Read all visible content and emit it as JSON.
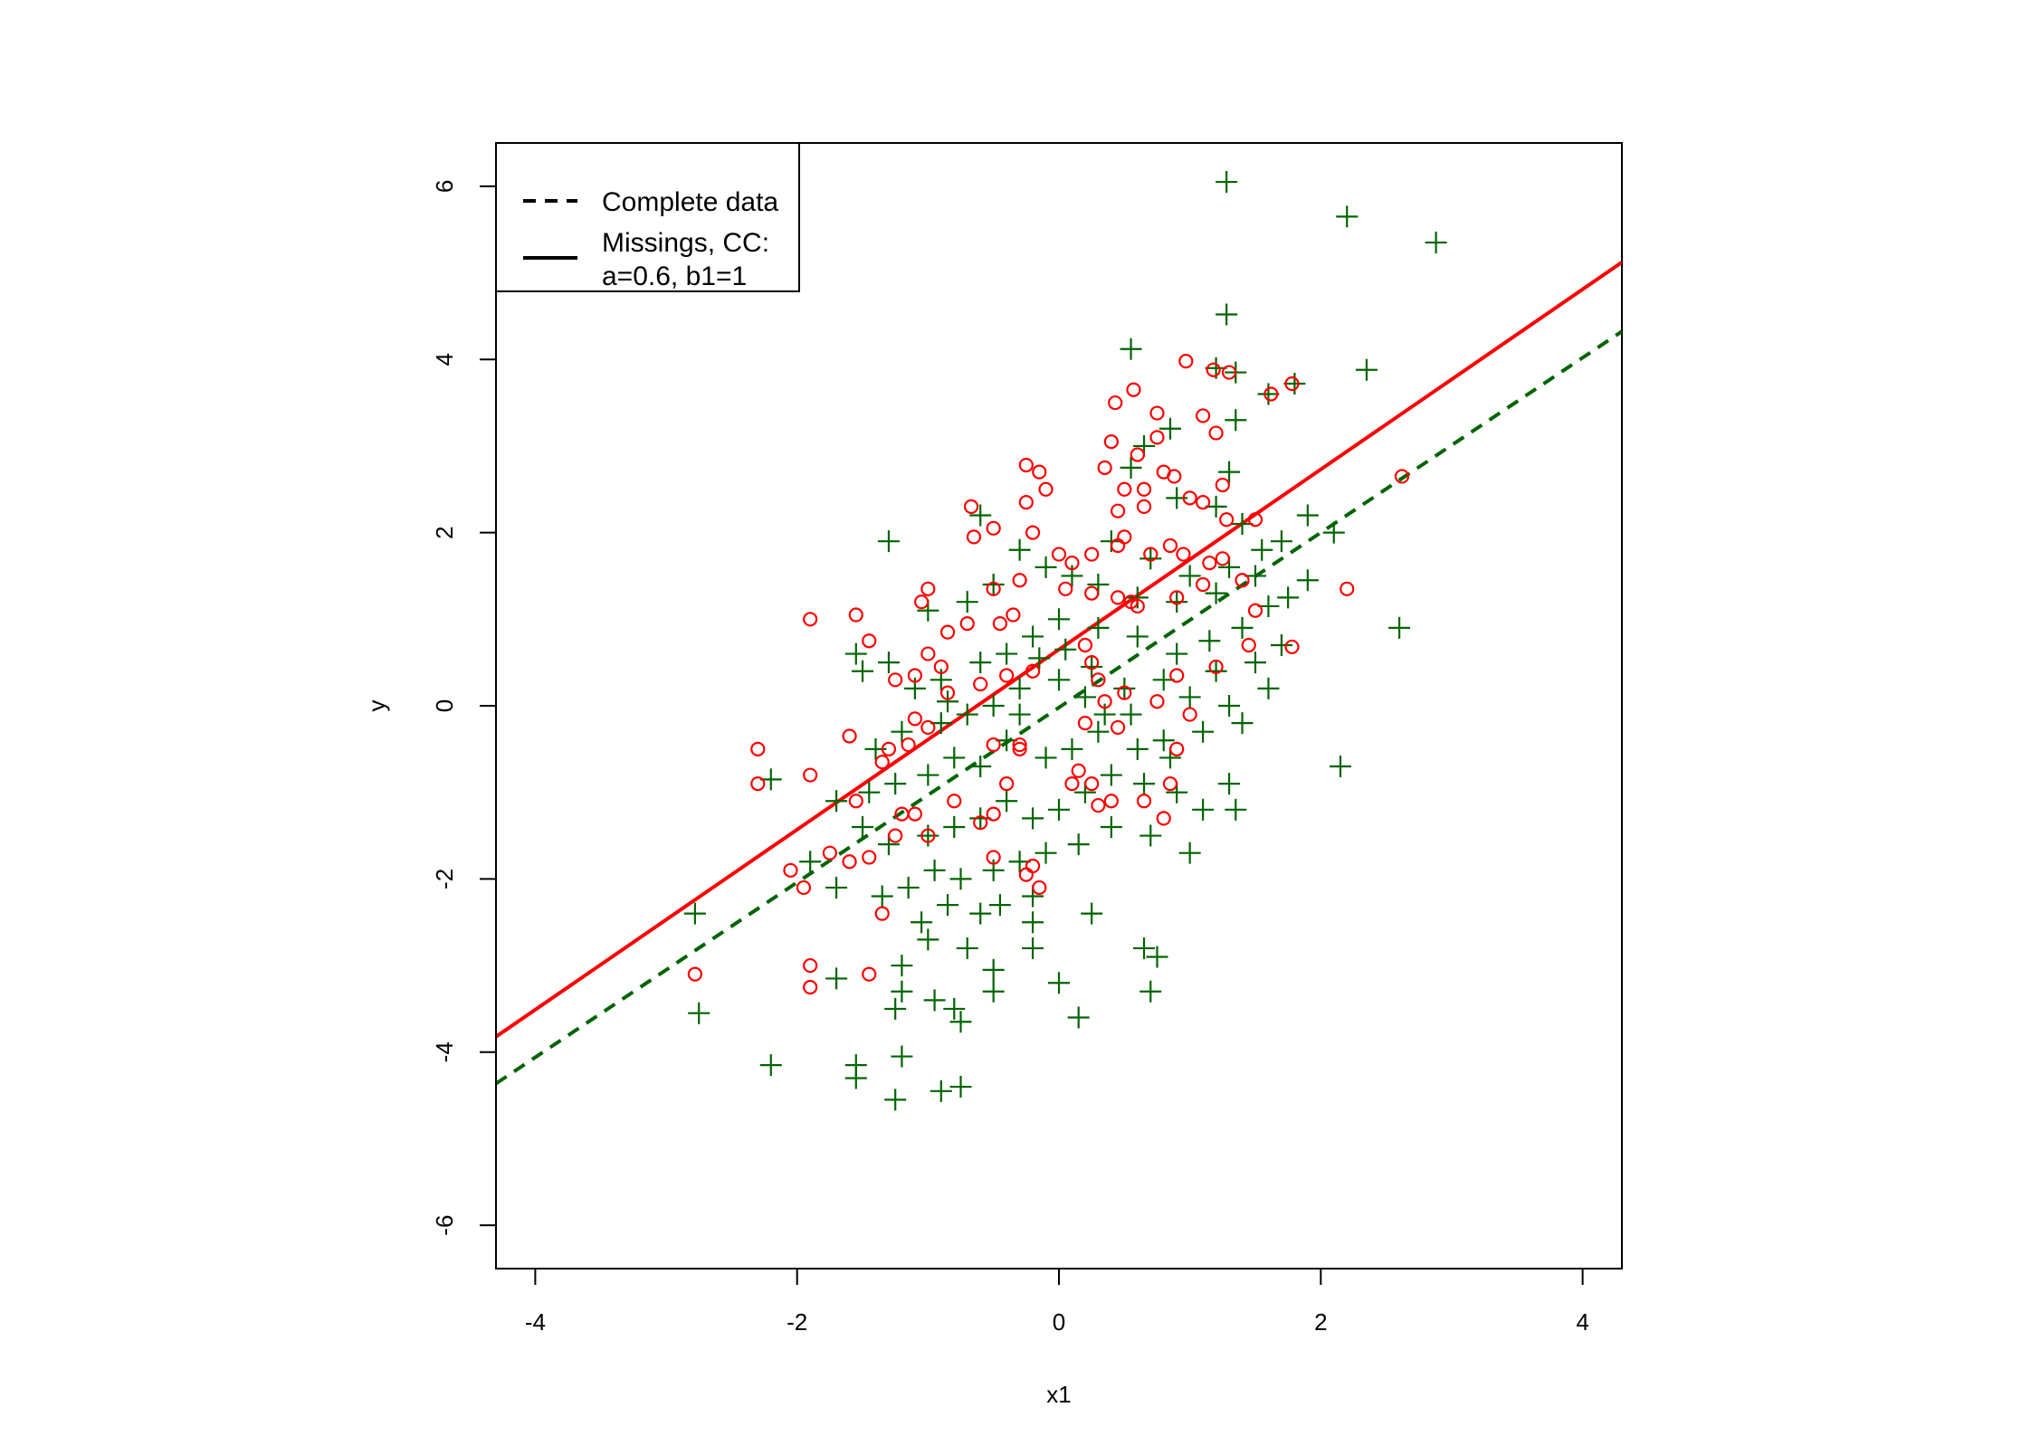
{
  "chart_data": {
    "type": "scatter",
    "title": "",
    "xlabel": "x1",
    "ylabel": "y",
    "xlim": [
      -4.3,
      4.3
    ],
    "ylim": [
      -6.5,
      6.5
    ],
    "xticks": [
      -4,
      -2,
      0,
      2,
      4
    ],
    "yticks": [
      -6,
      -4,
      -2,
      0,
      2,
      4,
      6
    ],
    "xtick_labels": [
      "-4",
      "-2",
      "0",
      "2",
      "4"
    ],
    "ytick_labels": [
      "-6",
      "-4",
      "-2",
      "0",
      "2",
      "4",
      "6"
    ],
    "grid": false,
    "legend": {
      "placement": "top-left",
      "entries": [
        {
          "label": "Complete data",
          "style": "dashed"
        },
        {
          "label": "Missings, CC:",
          "style": "solid"
        },
        {
          "label": "a=0.6, b1=1",
          "style": "none"
        }
      ]
    },
    "colors": {
      "complete": "#006400",
      "observed": "#ff0000"
    },
    "lines": [
      {
        "id": "complete",
        "style": "dashed",
        "color": "#006400",
        "intercept": -0.02,
        "slope": 1.01
      },
      {
        "id": "cc",
        "style": "solid",
        "color": "#ff0000",
        "intercept": 0.65,
        "slope": 1.04
      }
    ],
    "series": [
      {
        "marker": "plus",
        "color": "#006400",
        "points": [
          [
            1.28,
            6.05
          ],
          [
            2.2,
            5.65
          ],
          [
            2.88,
            5.35
          ],
          [
            1.28,
            4.52
          ],
          [
            0.55,
            4.12
          ],
          [
            2.35,
            3.88
          ],
          [
            1.2,
            3.9
          ],
          [
            1.35,
            3.85
          ],
          [
            1.6,
            3.6
          ],
          [
            1.8,
            3.72
          ],
          [
            1.35,
            3.3
          ],
          [
            0.65,
            3.0
          ],
          [
            0.85,
            3.2
          ],
          [
            0.55,
            2.75
          ],
          [
            1.3,
            2.7
          ],
          [
            0.9,
            2.4
          ],
          [
            1.2,
            2.3
          ],
          [
            1.4,
            2.1
          ],
          [
            1.9,
            2.2
          ],
          [
            2.1,
            2.0
          ],
          [
            1.55,
            1.8
          ],
          [
            1.7,
            1.9
          ],
          [
            0.4,
            1.9
          ],
          [
            0.7,
            1.7
          ],
          [
            1.0,
            1.5
          ],
          [
            1.3,
            1.6
          ],
          [
            1.5,
            1.5
          ],
          [
            1.9,
            1.45
          ],
          [
            1.2,
            1.3
          ],
          [
            0.9,
            1.2
          ],
          [
            0.6,
            1.25
          ],
          [
            0.3,
            1.4
          ],
          [
            0.1,
            1.5
          ],
          [
            -0.1,
            1.6
          ],
          [
            -0.3,
            1.8
          ],
          [
            -0.5,
            1.4
          ],
          [
            -0.7,
            1.2
          ],
          [
            -1.0,
            1.1
          ],
          [
            -1.3,
            1.9
          ],
          [
            -0.6,
            2.2
          ],
          [
            1.6,
            1.15
          ],
          [
            1.4,
            0.9
          ],
          [
            1.7,
            0.7
          ],
          [
            1.5,
            0.5
          ],
          [
            1.2,
            0.4
          ],
          [
            0.9,
            0.6
          ],
          [
            0.6,
            0.8
          ],
          [
            0.3,
            0.9
          ],
          [
            0.0,
            1.0
          ],
          [
            -0.2,
            0.8
          ],
          [
            -0.4,
            0.6
          ],
          [
            -0.6,
            0.5
          ],
          [
            -0.9,
            0.3
          ],
          [
            -1.1,
            0.2
          ],
          [
            -1.3,
            0.5
          ],
          [
            -1.55,
            0.6
          ],
          [
            -1.5,
            0.4
          ],
          [
            1.6,
            0.2
          ],
          [
            1.3,
            0.0
          ],
          [
            1.0,
            0.1
          ],
          [
            0.8,
            0.3
          ],
          [
            0.5,
            0.2
          ],
          [
            0.2,
            0.1
          ],
          [
            0.0,
            0.3
          ],
          [
            -0.3,
            0.2
          ],
          [
            -0.5,
            0.0
          ],
          [
            -0.7,
            -0.1
          ],
          [
            -0.9,
            -0.2
          ],
          [
            -1.2,
            -0.3
          ],
          [
            -1.4,
            -0.5
          ],
          [
            1.4,
            -0.2
          ],
          [
            1.1,
            -0.3
          ],
          [
            0.8,
            -0.4
          ],
          [
            0.6,
            -0.5
          ],
          [
            0.3,
            -0.3
          ],
          [
            0.1,
            -0.5
          ],
          [
            -0.1,
            -0.6
          ],
          [
            -0.4,
            -0.4
          ],
          [
            -0.6,
            -0.7
          ],
          [
            -0.8,
            -0.6
          ],
          [
            -1.0,
            -0.8
          ],
          [
            -1.25,
            -0.9
          ],
          [
            -1.45,
            -1.0
          ],
          [
            -2.2,
            -0.85
          ],
          [
            -1.7,
            -1.1
          ],
          [
            1.3,
            -0.9
          ],
          [
            1.35,
            -1.2
          ],
          [
            1.1,
            -1.2
          ],
          [
            0.9,
            -1.0
          ],
          [
            0.65,
            -0.9
          ],
          [
            0.4,
            -0.8
          ],
          [
            0.2,
            -1.0
          ],
          [
            0.0,
            -1.2
          ],
          [
            -0.2,
            -1.3
          ],
          [
            -0.4,
            -1.1
          ],
          [
            -0.6,
            -1.3
          ],
          [
            -0.8,
            -1.4
          ],
          [
            -1.0,
            -1.5
          ],
          [
            -1.3,
            -1.6
          ],
          [
            -1.5,
            -1.4
          ],
          [
            2.15,
            -0.7
          ],
          [
            2.6,
            0.9
          ],
          [
            1.0,
            -1.7
          ],
          [
            0.7,
            -1.5
          ],
          [
            0.4,
            -1.4
          ],
          [
            0.15,
            -1.6
          ],
          [
            -0.1,
            -1.7
          ],
          [
            -0.3,
            -1.8
          ],
          [
            -0.5,
            -1.9
          ],
          [
            -0.75,
            -2.0
          ],
          [
            -0.95,
            -1.9
          ],
          [
            -1.15,
            -2.1
          ],
          [
            -1.35,
            -2.2
          ],
          [
            -1.7,
            -2.1
          ],
          [
            -1.9,
            -1.8
          ],
          [
            -0.45,
            -2.3
          ],
          [
            -0.2,
            -2.2
          ],
          [
            -0.6,
            -2.4
          ],
          [
            -0.85,
            -2.3
          ],
          [
            -1.05,
            -2.5
          ],
          [
            0.25,
            -2.4
          ],
          [
            -0.2,
            -2.5
          ],
          [
            -1.0,
            -2.7
          ],
          [
            -0.7,
            -2.8
          ],
          [
            -0.2,
            -2.8
          ],
          [
            0.65,
            -2.8
          ],
          [
            0.75,
            -2.9
          ],
          [
            -1.2,
            -3.0
          ],
          [
            -0.5,
            -3.05
          ],
          [
            -1.7,
            -3.15
          ],
          [
            -1.2,
            -3.3
          ],
          [
            -0.5,
            -3.3
          ],
          [
            0.0,
            -3.2
          ],
          [
            0.7,
            -3.3
          ],
          [
            -0.8,
            -3.5
          ],
          [
            -0.95,
            -3.4
          ],
          [
            -1.25,
            -3.5
          ],
          [
            -0.75,
            -3.65
          ],
          [
            0.15,
            -3.6
          ],
          [
            -2.75,
            -3.55
          ],
          [
            -2.78,
            -2.4
          ],
          [
            -2.2,
            -4.15
          ],
          [
            -1.55,
            -4.15
          ],
          [
            -1.55,
            -4.3
          ],
          [
            -1.2,
            -4.05
          ],
          [
            -1.25,
            -4.55
          ],
          [
            -0.9,
            -4.45
          ],
          [
            -0.75,
            -4.4
          ],
          [
            0.35,
            -0.1
          ],
          [
            -0.15,
            0.55
          ],
          [
            0.55,
            -0.1
          ],
          [
            0.85,
            -0.6
          ],
          [
            1.15,
            0.75
          ],
          [
            -0.3,
            -0.1
          ],
          [
            0.05,
            0.65
          ],
          [
            -0.85,
            0.05
          ],
          [
            0.25,
            0.45
          ],
          [
            1.75,
            1.25
          ]
        ]
      },
      {
        "marker": "circle",
        "color": "#ff0000",
        "points": [
          [
            0.97,
            3.98
          ],
          [
            1.18,
            3.88
          ],
          [
            1.3,
            3.85
          ],
          [
            1.62,
            3.6
          ],
          [
            1.78,
            3.72
          ],
          [
            0.57,
            3.65
          ],
          [
            0.43,
            3.5
          ],
          [
            0.75,
            3.38
          ],
          [
            1.1,
            3.35
          ],
          [
            1.2,
            3.15
          ],
          [
            0.4,
            3.05
          ],
          [
            0.75,
            3.1
          ],
          [
            0.6,
            2.9
          ],
          [
            -0.25,
            2.78
          ],
          [
            -0.15,
            2.7
          ],
          [
            0.35,
            2.75
          ],
          [
            0.8,
            2.7
          ],
          [
            0.88,
            2.65
          ],
          [
            -0.1,
            2.5
          ],
          [
            0.5,
            2.5
          ],
          [
            0.65,
            2.5
          ],
          [
            -0.25,
            2.35
          ],
          [
            0.65,
            2.3
          ],
          [
            1.0,
            2.4
          ],
          [
            1.25,
            2.55
          ],
          [
            1.1,
            2.35
          ],
          [
            -0.67,
            2.3
          ],
          [
            0.45,
            2.25
          ],
          [
            2.62,
            2.65
          ],
          [
            1.5,
            2.15
          ],
          [
            1.28,
            2.15
          ],
          [
            -0.5,
            2.05
          ],
          [
            -0.2,
            2.0
          ],
          [
            0.5,
            1.95
          ],
          [
            -0.65,
            1.95
          ],
          [
            0.45,
            1.85
          ],
          [
            0.85,
            1.85
          ],
          [
            0.95,
            1.75
          ],
          [
            0.7,
            1.75
          ],
          [
            0.25,
            1.75
          ],
          [
            0.1,
            1.65
          ],
          [
            0.0,
            1.75
          ],
          [
            1.25,
            1.7
          ],
          [
            1.15,
            1.65
          ],
          [
            0.05,
            1.35
          ],
          [
            -0.3,
            1.45
          ],
          [
            -0.5,
            1.35
          ],
          [
            -1.0,
            1.35
          ],
          [
            -1.05,
            1.2
          ],
          [
            -1.55,
            1.05
          ],
          [
            -1.9,
            1.0
          ],
          [
            -1.45,
            0.75
          ],
          [
            0.25,
            1.3
          ],
          [
            0.45,
            1.25
          ],
          [
            0.55,
            1.2
          ],
          [
            0.6,
            1.15
          ],
          [
            0.9,
            1.25
          ],
          [
            1.4,
            1.45
          ],
          [
            1.1,
            1.4
          ],
          [
            1.5,
            1.1
          ],
          [
            2.2,
            1.35
          ],
          [
            -0.35,
            1.05
          ],
          [
            -0.45,
            0.95
          ],
          [
            -0.7,
            0.95
          ],
          [
            -0.85,
            0.85
          ],
          [
            -1.0,
            0.6
          ],
          [
            -0.9,
            0.45
          ],
          [
            1.45,
            0.7
          ],
          [
            1.78,
            0.68
          ],
          [
            0.2,
            0.7
          ],
          [
            0.25,
            0.5
          ],
          [
            -0.2,
            0.4
          ],
          [
            -0.4,
            0.35
          ],
          [
            -0.6,
            0.25
          ],
          [
            -0.85,
            0.15
          ],
          [
            -1.1,
            0.35
          ],
          [
            -1.25,
            0.3
          ],
          [
            0.9,
            0.35
          ],
          [
            1.2,
            0.45
          ],
          [
            0.3,
            0.3
          ],
          [
            0.5,
            0.15
          ],
          [
            0.75,
            0.05
          ],
          [
            1.0,
            -0.1
          ],
          [
            -1.1,
            -0.15
          ],
          [
            -1.0,
            -0.25
          ],
          [
            -1.15,
            -0.45
          ],
          [
            -1.3,
            -0.5
          ],
          [
            -1.6,
            -0.35
          ],
          [
            -2.3,
            -0.5
          ],
          [
            -2.3,
            -0.9
          ],
          [
            -1.9,
            -0.8
          ],
          [
            -1.35,
            -0.65
          ],
          [
            -0.5,
            -0.45
          ],
          [
            -0.3,
            -0.5
          ],
          [
            0.15,
            -0.75
          ],
          [
            0.1,
            -0.9
          ],
          [
            0.25,
            -0.9
          ],
          [
            0.4,
            -1.1
          ],
          [
            0.65,
            -1.1
          ],
          [
            0.85,
            -0.9
          ],
          [
            0.9,
            -0.5
          ],
          [
            0.45,
            -0.25
          ],
          [
            -0.4,
            -0.9
          ],
          [
            -0.5,
            -1.25
          ],
          [
            -0.6,
            -1.35
          ],
          [
            -0.8,
            -1.1
          ],
          [
            -1.1,
            -1.25
          ],
          [
            -1.2,
            -1.25
          ],
          [
            -1.55,
            -1.1
          ],
          [
            -1.0,
            -1.5
          ],
          [
            -1.25,
            -1.5
          ],
          [
            -1.75,
            -1.7
          ],
          [
            -1.6,
            -1.8
          ],
          [
            -1.45,
            -1.75
          ],
          [
            -2.05,
            -1.9
          ],
          [
            -1.95,
            -2.1
          ],
          [
            -0.5,
            -1.75
          ],
          [
            -0.2,
            -1.85
          ],
          [
            -0.15,
            -2.1
          ],
          [
            -0.25,
            -1.95
          ],
          [
            -1.35,
            -2.4
          ],
          [
            -1.9,
            -3.0
          ],
          [
            -1.9,
            -3.25
          ],
          [
            -1.45,
            -3.1
          ],
          [
            -2.78,
            -3.1
          ],
          [
            0.8,
            -1.3
          ],
          [
            0.3,
            -1.15
          ],
          [
            -0.3,
            -0.45
          ],
          [
            0.35,
            0.05
          ],
          [
            0.2,
            -0.2
          ]
        ]
      }
    ]
  }
}
